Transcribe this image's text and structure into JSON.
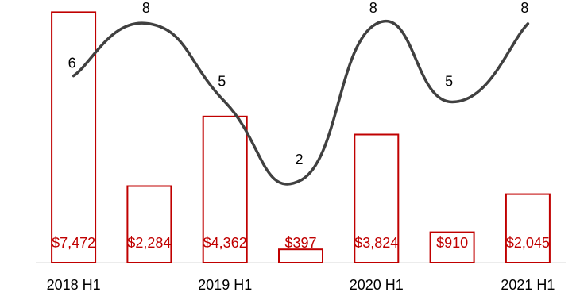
{
  "chart_data": {
    "type": "bar",
    "categories": [
      "2018 H1",
      "",
      "2019 H1",
      "",
      "2020 H1",
      "",
      "2021 H1"
    ],
    "series": [
      {
        "type": "bar",
        "values": [
          7472,
          2284,
          4362,
          397,
          3824,
          910,
          2045
        ],
        "labels": [
          "$7,472",
          "$2,284",
          "$4,362",
          "$397",
          "$3,824",
          "$910",
          "$2,045"
        ],
        "color": "#c00000"
      },
      {
        "type": "line",
        "smooth": true,
        "values": [
          6,
          8,
          5,
          2,
          8,
          5,
          8
        ],
        "labels": [
          "6",
          "8",
          "5",
          "2",
          "8",
          "5",
          "8"
        ],
        "color": "#404040"
      }
    ],
    "x_tick_labels": [
      "2018 H1",
      "2019 H1",
      "2020 H1",
      "2021 H1"
    ],
    "bar_ylim": [
      0,
      7600
    ],
    "line_ylim": [
      1,
      8.3
    ],
    "grid": false,
    "legend": "none"
  }
}
